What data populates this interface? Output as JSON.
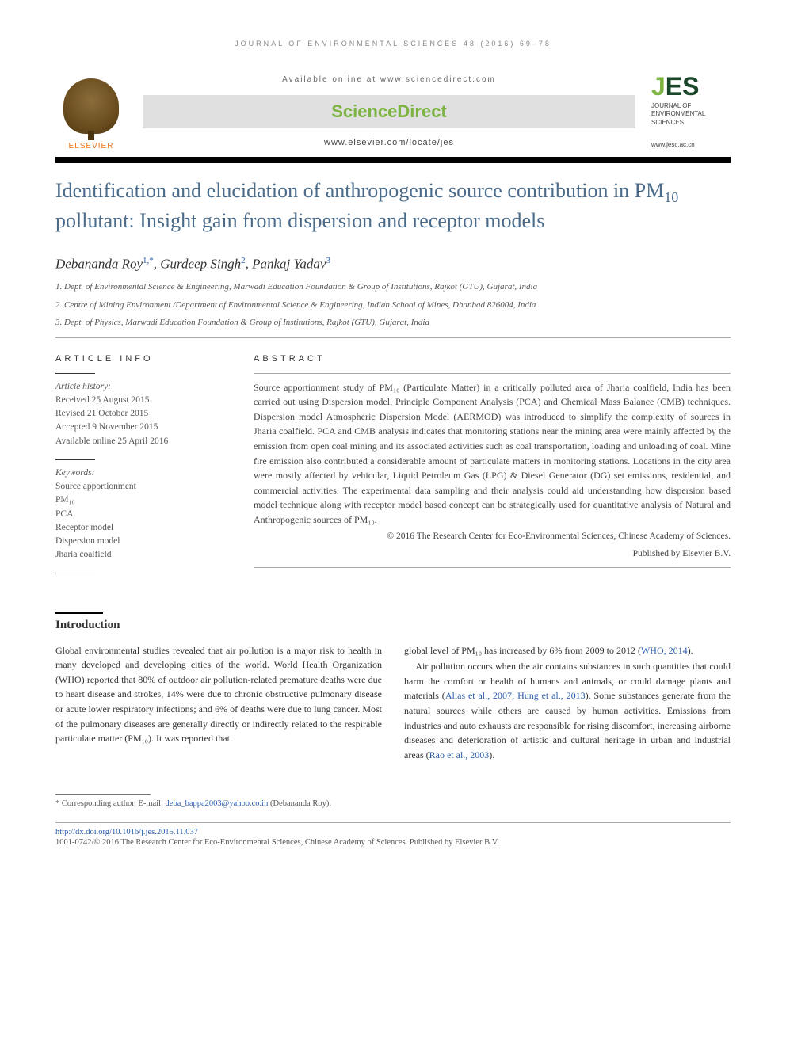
{
  "running_header": "JOURNAL OF ENVIRONMENTAL SCIENCES 48 (2016) 69–78",
  "banner": {
    "elsevier": "ELSEVIER",
    "available_online": "Available online at www.sciencedirect.com",
    "sciencedirect": "ScienceDirect",
    "locate": "www.elsevier.com/locate/jes",
    "jes_mark_j": "J",
    "jes_mark_es": "ES",
    "jes_sub": "JOURNAL OF ENVIRONMENTAL SCIENCES",
    "jes_url": "www.jesc.ac.cn"
  },
  "title_pre": "Identification and elucidation of anthropogenic source contribution in PM",
  "title_sub": "10",
  "title_post": " pollutant: Insight gain from dispersion and receptor models",
  "authors_html": "Debananda Roy<sup>1,*</sup>, Gurdeep Singh<sup>2</sup>, Pankaj Yadav<sup>3</sup>",
  "affiliations": [
    "1. Dept. of Environmental Science & Engineering, Marwadi Education Foundation & Group of Institutions, Rajkot (GTU), Gujarat, India",
    "2. Centre of Mining Environment /Department of Environmental Science & Engineering, Indian School of Mines, Dhanbad 826004, India",
    "3. Dept. of Physics, Marwadi Education Foundation & Group of Institutions, Rajkot (GTU), Gujarat, India"
  ],
  "article_info": {
    "heading": "ARTICLE INFO",
    "history_label": "Article history:",
    "history": [
      "Received 25 August 2015",
      "Revised 21 October 2015",
      "Accepted 9 November 2015",
      "Available online 25 April 2016"
    ],
    "keywords_label": "Keywords:",
    "keywords": [
      "Source apportionment",
      "PM₁₀",
      "PCA",
      "Receptor model",
      "Dispersion model",
      "Jharia coalfield"
    ]
  },
  "abstract": {
    "heading": "ABSTRACT",
    "text": "Source apportionment study of PM₁₀ (Particulate Matter) in a critically polluted area of Jharia coalfield, India has been carried out using Dispersion model, Principle Component Analysis (PCA) and Chemical Mass Balance (CMB) techniques. Dispersion model Atmospheric Dispersion Model (AERMOD) was introduced to simplify the complexity of sources in Jharia coalfield. PCA and CMB analysis indicates that monitoring stations near the mining area were mainly affected by the emission from open coal mining and its associated activities such as coal transportation, loading and unloading of coal. Mine fire emission also contributed a considerable amount of particulate matters in monitoring stations. Locations in the city area were mostly affected by vehicular, Liquid Petroleum Gas (LPG) & Diesel Generator (DG) set emissions, residential, and commercial activities. The experimental data sampling and their analysis could aid understanding how dispersion based model technique along with receptor model based concept can be strategically used for quantitative analysis of Natural and Anthropogenic sources of PM₁₀.",
    "copyright1": "© 2016 The Research Center for Eco-Environmental Sciences, Chinese Academy of Sciences.",
    "copyright2": "Published by Elsevier B.V."
  },
  "intro": {
    "heading": "Introduction",
    "col1": "Global environmental studies revealed that air pollution is a major risk to health in many developed and developing cities of the world. World Health Organization (WHO) reported that 80% of outdoor air pollution-related premature deaths were due to heart disease and strokes, 14% were due to chronic obstructive pulmonary disease or acute lower respiratory infections; and 6% of deaths were due to lung cancer. Most of the pulmonary diseases are generally directly or indirectly related to the respirable particulate matter (PM₁₀). It was reported that",
    "col2_p1_pre": "global level of PM₁₀ has increased by 6% from 2009 to 2012 (",
    "col2_p1_cite": "WHO, 2014",
    "col2_p1_post": ").",
    "col2_p2_pre": "Air pollution occurs when the air contains substances in such quantities that could harm the comfort or health of humans and animals, or could damage plants and materials (",
    "col2_p2_cite": "Alias et al., 2007; Hung et al., 2013",
    "col2_p2_mid": "). Some substances generate from the natural sources while others are caused by human activities. Emissions from industries and auto exhausts are responsible for rising discomfort, increasing airborne diseases and deterioration of artistic and cultural heritage in urban and industrial areas (",
    "col2_p2_cite2": "Rao et al., 2003",
    "col2_p2_post": ")."
  },
  "footnote": {
    "label": "* Corresponding author. E-mail: ",
    "email": "deba_bappa2003@yahoo.co.in",
    "name": " (Debananda Roy)."
  },
  "doi": "http://dx.doi.org/10.1016/j.jes.2015.11.037",
  "issn": "1001-0742/© 2016 The Research Center for Eco-Environmental Sciences, Chinese Academy of Sciences. Published by Elsevier B.V."
}
